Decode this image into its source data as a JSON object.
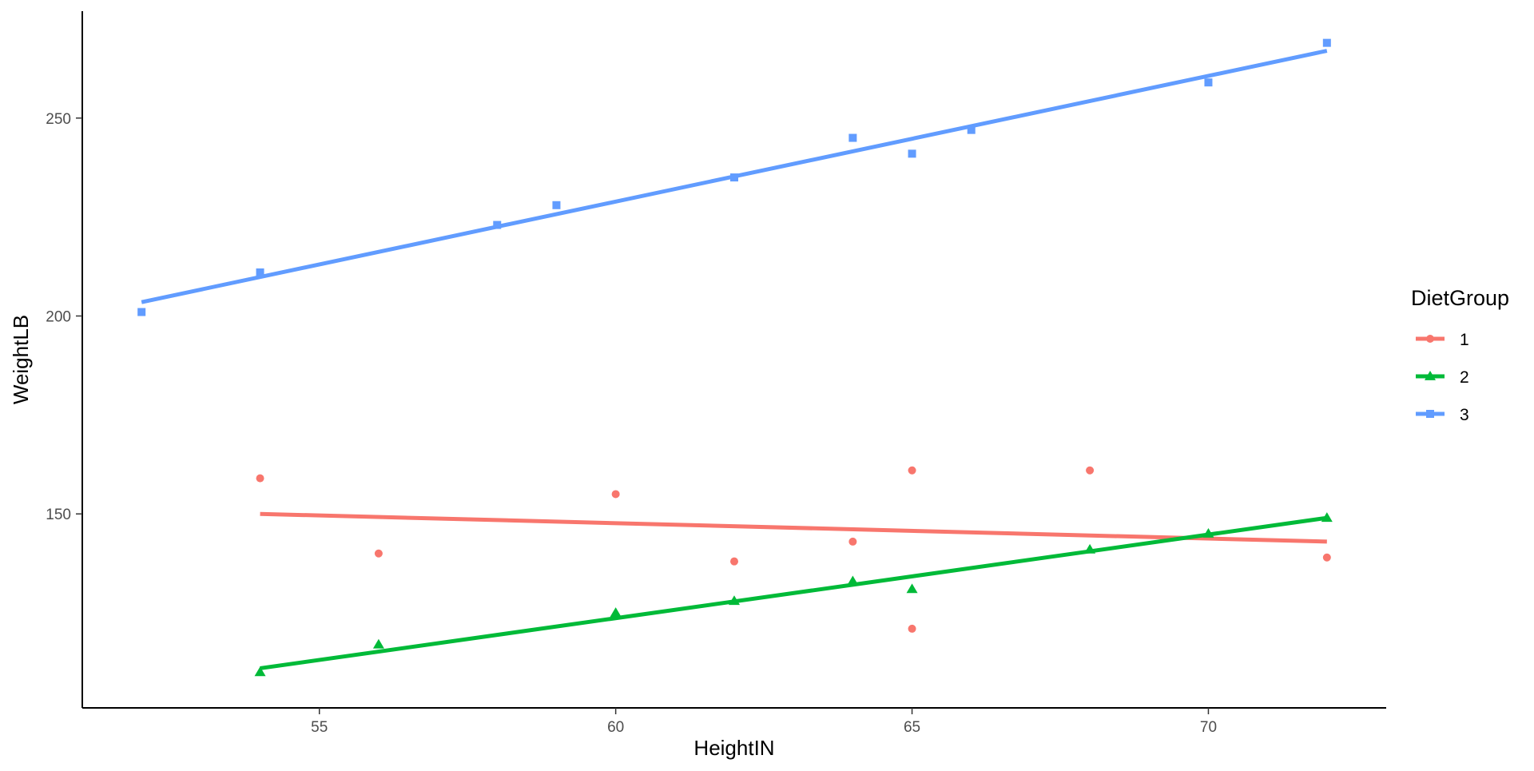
{
  "chart_data": {
    "type": "scatter",
    "xlabel": "HeightIN",
    "ylabel": "WeightLB",
    "xlim": [
      51,
      73
    ],
    "ylim": [
      101,
      277
    ],
    "x_ticks": [
      55,
      60,
      65,
      70
    ],
    "y_ticks": [
      150,
      200,
      250
    ],
    "grid": false,
    "legend": {
      "title": "DietGroup",
      "placement": "right"
    },
    "series": [
      {
        "name": "1",
        "color": "#F8766D",
        "marker": "circle",
        "points": [
          {
            "x": 54,
            "y": 159
          },
          {
            "x": 56,
            "y": 140
          },
          {
            "x": 60,
            "y": 155
          },
          {
            "x": 62,
            "y": 138
          },
          {
            "x": 64,
            "y": 143
          },
          {
            "x": 65,
            "y": 161
          },
          {
            "x": 65,
            "y": 121
          },
          {
            "x": 68,
            "y": 161
          },
          {
            "x": 72,
            "y": 139
          }
        ],
        "fit": {
          "x": [
            54,
            72
          ],
          "y": [
            150,
            143
          ]
        }
      },
      {
        "name": "2",
        "color": "#00BA38",
        "marker": "triangle",
        "points": [
          {
            "x": 54,
            "y": 110
          },
          {
            "x": 56,
            "y": 117
          },
          {
            "x": 60,
            "y": 125
          },
          {
            "x": 62,
            "y": 128
          },
          {
            "x": 64,
            "y": 133
          },
          {
            "x": 65,
            "y": 131
          },
          {
            "x": 68,
            "y": 141
          },
          {
            "x": 70,
            "y": 145
          },
          {
            "x": 72,
            "y": 149
          }
        ],
        "fit": {
          "x": [
            54,
            72
          ],
          "y": [
            111,
            149
          ]
        }
      },
      {
        "name": "3",
        "color": "#619CFF",
        "marker": "square",
        "points": [
          {
            "x": 52,
            "y": 201
          },
          {
            "x": 54,
            "y": 211
          },
          {
            "x": 58,
            "y": 223
          },
          {
            "x": 59,
            "y": 228
          },
          {
            "x": 62,
            "y": 235
          },
          {
            "x": 64,
            "y": 245
          },
          {
            "x": 65,
            "y": 241
          },
          {
            "x": 66,
            "y": 247
          },
          {
            "x": 70,
            "y": 259
          },
          {
            "x": 72,
            "y": 269
          }
        ],
        "fit": {
          "x": [
            52,
            72
          ],
          "y": [
            203.5,
            267
          ]
        }
      }
    ]
  }
}
